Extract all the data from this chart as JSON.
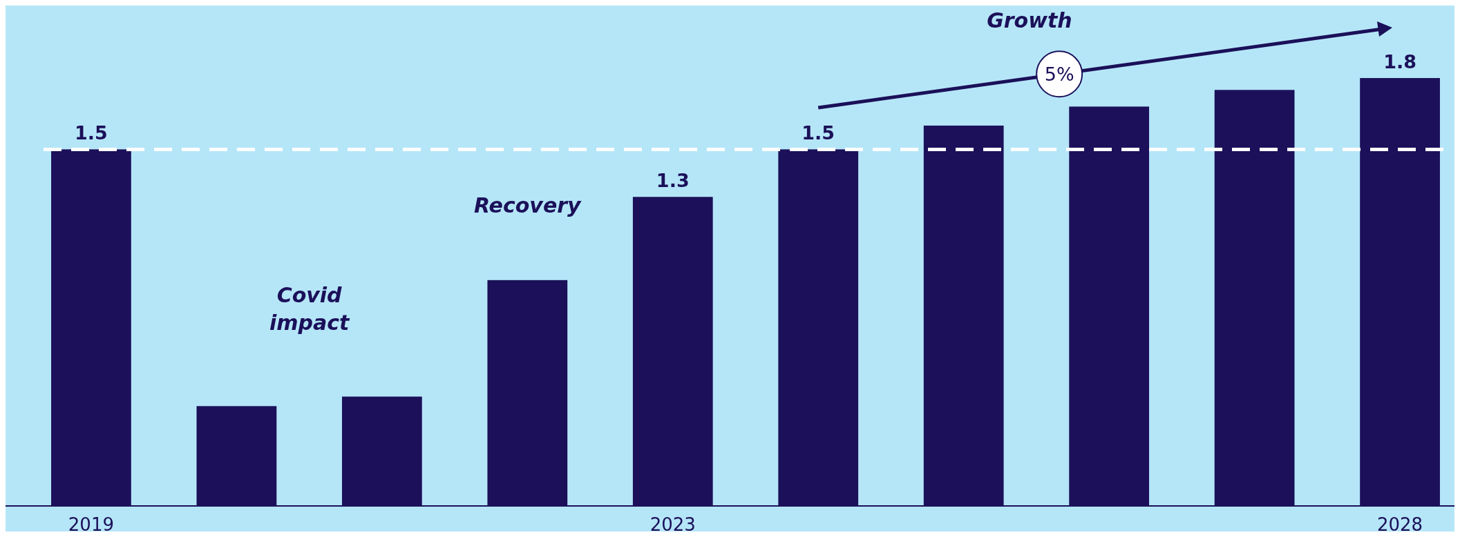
{
  "chart_data": {
    "type": "bar",
    "categories": [
      "2019",
      null,
      null,
      null,
      "2023",
      null,
      null,
      null,
      null,
      "2028"
    ],
    "values": [
      1.5,
      0.42,
      0.46,
      0.95,
      1.3,
      1.5,
      1.6,
      1.68,
      1.75,
      1.8
    ],
    "color": "#1b1059",
    "value_labels": [
      "1.5",
      null,
      null,
      null,
      "1.3",
      "1.5",
      null,
      null,
      null,
      "1.8"
    ],
    "ref_lines": [
      {
        "axis": "y",
        "value": 1.5,
        "color": "#ffffff",
        "line_style": "dashed"
      }
    ],
    "annotations": [
      "Covid impact",
      "Recovery",
      "Growth",
      "5%"
    ]
  }
}
